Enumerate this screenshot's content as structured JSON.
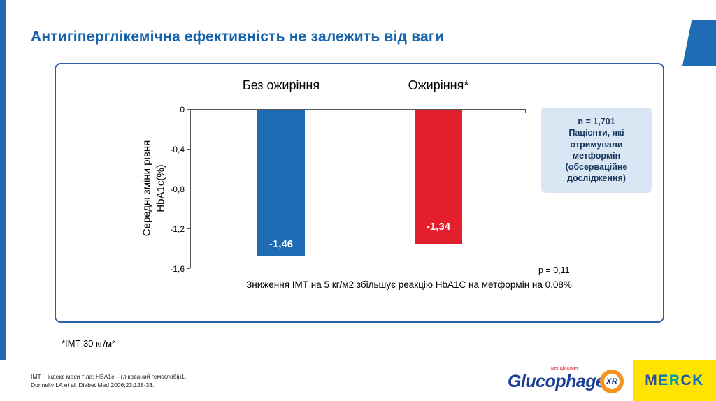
{
  "slide": {
    "title": "Антигіперглікемічна ефективність не залежить від ваги",
    "footnote": "*ІМТ  30 кг/м²",
    "footer": {
      "line1": "ІМТ – індекс маси тіла; HBA1c – глікований гемоглобін1.",
      "line2": "Donnelly LA et al. Diabet Med 2006;23:128-33."
    }
  },
  "chart_data": {
    "type": "bar",
    "categories": [
      "Без ожиріння",
      "Ожиріння*"
    ],
    "values": [
      -1.46,
      -1.34
    ],
    "value_labels": [
      "-1,46",
      "-1,34"
    ],
    "bar_colors": [
      "#1f6cb4",
      "#e31e2d"
    ],
    "ylabel_line1": "Середні зміни рівня",
    "ylabel_line2": "HbA1c(%)",
    "ylim": [
      0,
      -1.6
    ],
    "yticks": [
      "0",
      "-0,4",
      "-0,8",
      "-1,2",
      "-1,6"
    ],
    "grid": false,
    "legend_position": "none",
    "annotation": {
      "line1": "n = 1,701",
      "rest": "Пацієнти, які отримували метформін (обсерваційне дослідження)"
    },
    "p_value": "p = 0,11",
    "caption": "Зниження ІМТ на 5 кг/м2 збільшує реакцію HbA1C на метформін на 0,08%"
  },
  "logos": {
    "glucophage": {
      "sub": "метформін",
      "name": "Glucophage",
      "xr": "XR"
    },
    "merck": {
      "text": "MERCK",
      "letter_colors": [
        "#2d4f9e",
        "#0e76bc",
        "#00a0af",
        "#2d4f9e",
        "#0e76bc"
      ]
    }
  }
}
